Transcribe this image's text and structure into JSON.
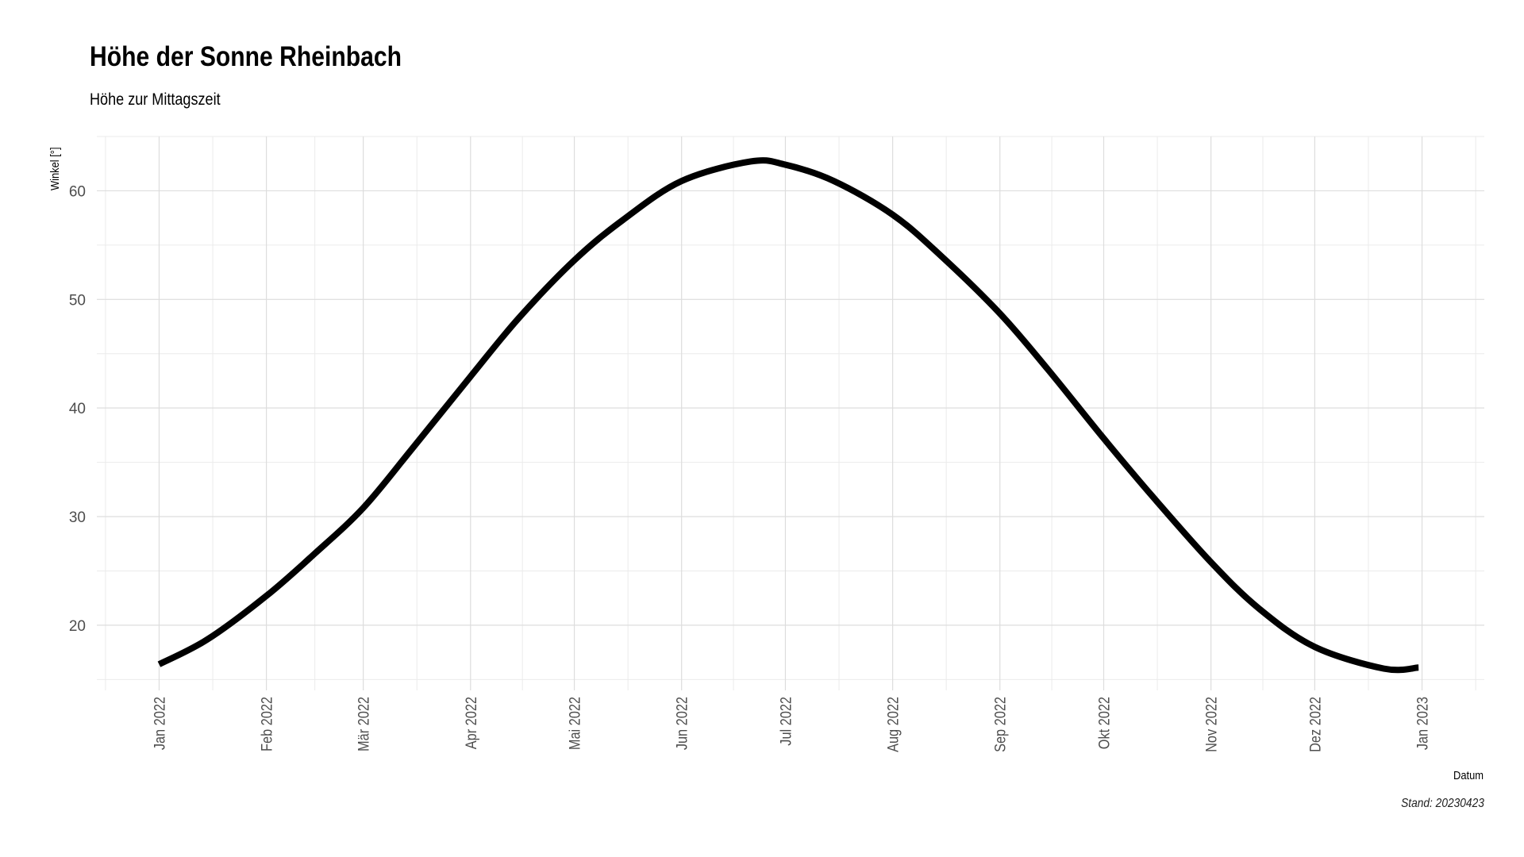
{
  "chart_data": {
    "type": "line",
    "title": "Höhe der Sonne Rheinbach",
    "subtitle": "Höhe zur Mittagszeit",
    "xlabel": "Datum",
    "ylabel": "Winkel [°]",
    "caption": "Stand: 20230423",
    "x_tick_labels": [
      "Jan 2022",
      "Feb 2022",
      "Mär 2022",
      "Apr 2022",
      "Mai 2022",
      "Jun 2022",
      "Jul 2022",
      "Aug 2022",
      "Sep 2022",
      "Okt 2022",
      "Nov 2022",
      "Dez 2022",
      "Jan 2023"
    ],
    "y_ticks": [
      20,
      30,
      40,
      50,
      60
    ],
    "ylim": [
      14,
      65
    ],
    "xlim": [
      "2021-12-14",
      "2023-01-19"
    ],
    "grid": true,
    "line_color": "#000000",
    "series": [
      {
        "x": [
          "2022-01-01",
          "2022-01-15",
          "2022-02-01",
          "2022-02-15",
          "2022-03-01",
          "2022-03-15",
          "2022-04-01",
          "2022-04-15",
          "2022-05-01",
          "2022-05-15",
          "2022-06-01",
          "2022-06-21",
          "2022-07-01",
          "2022-07-15",
          "2022-08-01",
          "2022-08-15",
          "2022-09-01",
          "2022-09-15",
          "2022-10-01",
          "2022-10-15",
          "2022-11-01",
          "2022-11-15",
          "2022-12-01",
          "2022-12-21",
          "2022-12-31"
        ],
        "values": [
          16.4,
          18.7,
          22.7,
          26.6,
          30.8,
          36.2,
          42.9,
          48.3,
          53.6,
          57.3,
          60.9,
          62.7,
          62.4,
          60.9,
          57.8,
          54.0,
          48.7,
          43.5,
          37.2,
          31.9,
          25.8,
          21.5,
          18.0,
          16.0,
          16.1
        ]
      }
    ]
  }
}
